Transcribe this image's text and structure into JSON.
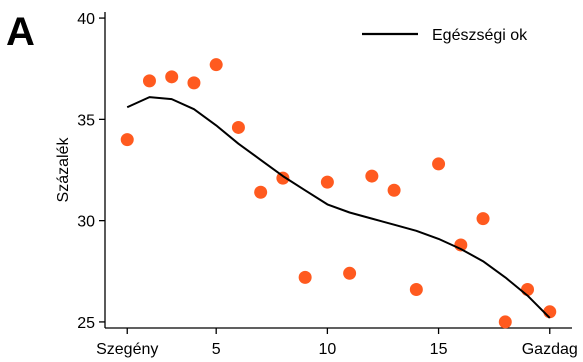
{
  "panel_label": "A",
  "chart_data": {
    "type": "scatter",
    "ylabel": "Százalék",
    "xlabel": "",
    "xlim": [
      0,
      21
    ],
    "ylim": [
      24.7,
      40.3
    ],
    "x_ticks": [
      {
        "value": 1,
        "label": "Szegény"
      },
      {
        "value": 5,
        "label": "5"
      },
      {
        "value": 10,
        "label": "10"
      },
      {
        "value": 15,
        "label": "15"
      },
      {
        "value": 20,
        "label": "Gazdag"
      }
    ],
    "y_ticks": [
      {
        "value": 25,
        "label": "25"
      },
      {
        "value": 30,
        "label": "30"
      },
      {
        "value": 35,
        "label": "35"
      },
      {
        "value": 40,
        "label": "40"
      }
    ],
    "grid": false,
    "legend_position": "top-right",
    "point_color": "#ff5a1f",
    "line_color": "#000000",
    "points": {
      "x": [
        1,
        2,
        3,
        4,
        5,
        6,
        7,
        8,
        9,
        10,
        11,
        12,
        13,
        14,
        15,
        16,
        17,
        18,
        19,
        20
      ],
      "y": [
        34.0,
        36.9,
        37.1,
        36.8,
        37.7,
        34.6,
        31.4,
        32.1,
        27.2,
        31.9,
        27.4,
        32.2,
        31.5,
        26.6,
        32.8,
        28.8,
        30.1,
        25.0,
        26.6,
        25.5
      ]
    },
    "series": [
      {
        "name": "Egészségi ok",
        "type": "line",
        "x": [
          1,
          2,
          3,
          4,
          5,
          6,
          7,
          8,
          9,
          10,
          11,
          12,
          13,
          14,
          15,
          16,
          17,
          18,
          19,
          20
        ],
        "y": [
          35.6,
          36.1,
          36.0,
          35.5,
          34.7,
          33.8,
          33.0,
          32.2,
          31.5,
          30.8,
          30.4,
          30.1,
          29.8,
          29.5,
          29.1,
          28.6,
          28.0,
          27.2,
          26.3,
          25.2
        ]
      }
    ]
  }
}
